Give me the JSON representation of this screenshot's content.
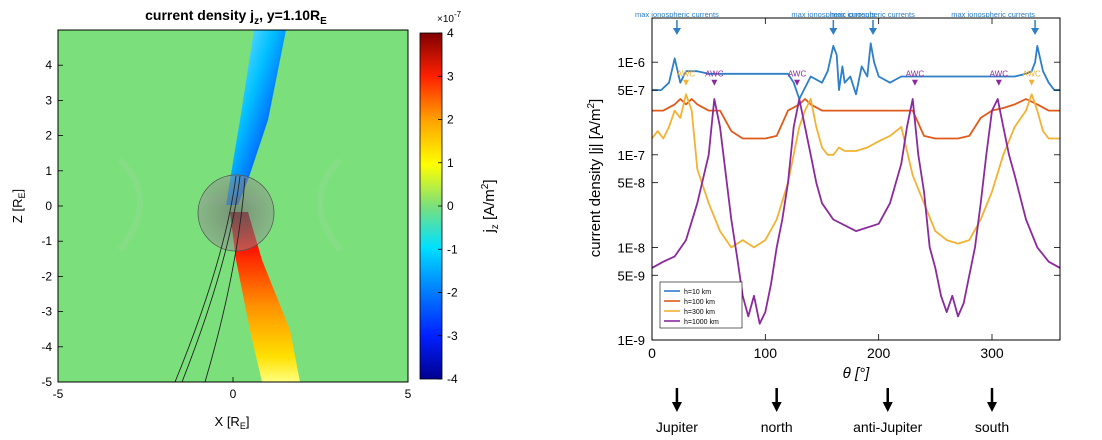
{
  "chart_data": [
    {
      "type": "heatmap",
      "title": "current density j",
      "title_subscript": "z",
      "title_rest": ", y=1.10R",
      "title_rest_subscript": "E",
      "xlabel": "X [R",
      "xlabel_subscript": "E",
      "xlabel_end": "]",
      "ylabel": "Z [R",
      "ylabel_subscript": "E",
      "ylabel_end": "]",
      "xlim": [
        -5,
        5
      ],
      "ylim": [
        -5,
        5
      ],
      "x_ticks": [
        "-5",
        "0",
        "5"
      ],
      "y_ticks": [
        "4",
        "3",
        "2",
        "1",
        "0",
        "-1",
        "-2",
        "-3",
        "-4",
        "-5"
      ],
      "colorbar": {
        "label": "j",
        "label_subscript": "z",
        "label_rest": " [A/m",
        "label_superscript": "2",
        "label_end": "]",
        "range": [
          -4,
          4
        ],
        "exponent_label": "×10",
        "exponent_value": "-7",
        "ticks": [
          "4",
          "3",
          "2",
          "1",
          "0",
          "-1",
          "-2",
          "-3",
          "-4"
        ]
      },
      "background_color": "#7be07b",
      "structure": {
        "positive_lobe": {
          "value": 4,
          "x": [
            0.1,
            1.4
          ],
          "z": [
            -0.3,
            -5
          ]
        },
        "negative_lobe": {
          "value": -4,
          "x": [
            1.5,
            0.1
          ],
          "z": [
            4.8,
            0.5
          ]
        },
        "body_radius": 1.0
      }
    },
    {
      "type": "line",
      "xlabel": "θ [°]",
      "ylabel": "current density |j| [A/m",
      "ylabel_superscript": "2",
      "ylabel_end": "]",
      "xlim": [
        0,
        360
      ],
      "ylim": [
        1e-09,
        3e-06
      ],
      "y_scale": "log",
      "x_ticks": [
        0,
        100,
        200,
        300
      ],
      "y_ticks": [
        {
          "value": 1e-06,
          "label": "1E-6"
        },
        {
          "value": 5e-07,
          "label": "5E-7"
        },
        {
          "value": 1e-07,
          "label": "1E-7"
        },
        {
          "value": 5e-08,
          "label": "5E-8"
        },
        {
          "value": 1e-08,
          "label": "1E-8"
        },
        {
          "value": 5e-09,
          "label": "5E-9"
        },
        {
          "value": 1e-09,
          "label": "1E-9"
        }
      ],
      "grid": false,
      "legend_position": "bottom-left",
      "series": [
        {
          "name": "h=10 km",
          "color": "#2d7fc8",
          "x": [
            0,
            8,
            15,
            20,
            25,
            30,
            40,
            50,
            60,
            80,
            100,
            120,
            125,
            130,
            140,
            150,
            155,
            160,
            163,
            165,
            168,
            170,
            175,
            180,
            185,
            190,
            193,
            196,
            200,
            210,
            215,
            220,
            240,
            260,
            280,
            300,
            320,
            330,
            335,
            338,
            340,
            345,
            350,
            355,
            360
          ],
          "y": [
            5e-07,
            5e-07,
            6e-07,
            1.1e-06,
            6e-07,
            8e-07,
            8e-07,
            7.5e-07,
            7.5e-07,
            7.5e-07,
            7.5e-07,
            7.5e-07,
            6e-07,
            4e-07,
            7e-07,
            6e-07,
            8e-07,
            1.5e-06,
            1.2e-06,
            5e-07,
            9e-07,
            6e-07,
            7e-07,
            4.5e-07,
            9e-07,
            7e-07,
            1.6e-06,
            1e-06,
            7e-07,
            6e-07,
            6.5e-07,
            7e-07,
            7e-07,
            7e-07,
            7e-07,
            7e-07,
            7e-07,
            7.5e-07,
            8e-07,
            1e-06,
            1.5e-06,
            8e-07,
            6e-07,
            5e-07,
            5e-07
          ]
        },
        {
          "name": "h=100 km",
          "color": "#e05a1c",
          "x": [
            0,
            10,
            20,
            25,
            30,
            35,
            40,
            50,
            60,
            70,
            80,
            90,
            100,
            110,
            120,
            130,
            135,
            140,
            150,
            160,
            170,
            180,
            190,
            200,
            210,
            220,
            230,
            240,
            250,
            260,
            270,
            280,
            290,
            300,
            310,
            320,
            330,
            340,
            350,
            360
          ],
          "y": [
            3e-07,
            3e-07,
            3.5e-07,
            4e-07,
            3.5e-07,
            4e-07,
            3.5e-07,
            3e-07,
            3e-07,
            1.8e-07,
            1.5e-07,
            1.5e-07,
            1.5e-07,
            1.6e-07,
            3e-07,
            3.5e-07,
            4e-07,
            3.5e-07,
            3e-07,
            3e-07,
            3e-07,
            3e-07,
            3e-07,
            3e-07,
            3e-07,
            3e-07,
            3e-07,
            1.6e-07,
            1.5e-07,
            1.5e-07,
            1.5e-07,
            1.6e-07,
            2.5e-07,
            3e-07,
            3.2e-07,
            3.5e-07,
            4e-07,
            3.5e-07,
            3e-07,
            3e-07
          ]
        },
        {
          "name": "h=300 km",
          "color": "#f2b233",
          "x": [
            0,
            5,
            10,
            15,
            20,
            25,
            30,
            35,
            40,
            50,
            60,
            70,
            80,
            90,
            100,
            110,
            120,
            130,
            135,
            140,
            145,
            150,
            155,
            160,
            165,
            170,
            180,
            190,
            200,
            210,
            220,
            230,
            240,
            250,
            260,
            270,
            280,
            290,
            300,
            310,
            320,
            330,
            335,
            340,
            345,
            350,
            360
          ],
          "y": [
            1.5e-07,
            1.8e-07,
            1.5e-07,
            2e-07,
            3e-07,
            2.5e-07,
            4.5e-07,
            3e-07,
            7e-08,
            3e-08,
            1.5e-08,
            1e-08,
            1.2e-08,
            1e-08,
            1.2e-08,
            2e-08,
            5e-08,
            2e-07,
            3e-07,
            4e-07,
            2e-07,
            1.2e-07,
            1e-07,
            1e-07,
            1.2e-07,
            1.1e-07,
            1.1e-07,
            1.2e-07,
            1.4e-07,
            1.6e-07,
            2e-07,
            6e-08,
            3e-08,
            1.5e-08,
            1.2e-08,
            1.1e-08,
            1.2e-08,
            2e-08,
            4e-08,
            1e-07,
            2e-07,
            3e-07,
            4.5e-07,
            3e-07,
            1.8e-07,
            1.5e-07,
            1.5e-07
          ]
        },
        {
          "name": "h=1000 km",
          "color": "#8b2a9c",
          "x": [
            0,
            10,
            20,
            30,
            40,
            50,
            55,
            60,
            70,
            75,
            80,
            85,
            90,
            95,
            100,
            105,
            110,
            115,
            120,
            125,
            130,
            135,
            140,
            145,
            150,
            160,
            180,
            200,
            210,
            220,
            225,
            230,
            235,
            240,
            245,
            250,
            255,
            260,
            265,
            270,
            275,
            280,
            285,
            290,
            295,
            300,
            305,
            310,
            315,
            320,
            330,
            340,
            350,
            360
          ],
          "y": [
            6e-09,
            7e-09,
            8e-09,
            1.2e-08,
            3e-08,
            1e-07,
            4e-07,
            2e-07,
            2e-08,
            8e-09,
            3e-09,
            1.8e-09,
            3e-09,
            1.5e-09,
            2e-09,
            4e-09,
            1e-08,
            2e-08,
            5e-08,
            2e-07,
            4e-07,
            2e-07,
            1e-07,
            5e-08,
            3e-08,
            2e-08,
            1.5e-08,
            1.8e-08,
            3e-08,
            8e-08,
            2e-07,
            4e-07,
            1e-07,
            4e-08,
            1e-08,
            6e-09,
            3e-09,
            2e-09,
            3e-09,
            1.8e-09,
            2.5e-09,
            5e-09,
            1e-08,
            3e-08,
            1e-07,
            3e-07,
            4e-07,
            2e-07,
            1e-07,
            6e-08,
            2e-08,
            1e-08,
            7e-09,
            6e-09
          ]
        }
      ],
      "annotations": [
        {
          "text": "max ionospheric currents",
          "x": 22,
          "color": "#2d7fc8"
        },
        {
          "text": "max ionospheric currents",
          "x": 160,
          "color": "#2d7fc8"
        },
        {
          "text": "max ionospheric currents",
          "x": 195,
          "color": "#2d7fc8"
        },
        {
          "text": "max ionospheric currents",
          "x": 338,
          "color": "#2d7fc8"
        },
        {
          "text": "AWC",
          "x": 30,
          "y": 6e-07,
          "color": "#f2b233"
        },
        {
          "text": "AWC",
          "x": 55,
          "y": 6e-07,
          "color": "#8b2a9c"
        },
        {
          "text": "AWC",
          "x": 128,
          "y": 6e-07,
          "color": "#8b2a9c"
        },
        {
          "text": "AWC",
          "x": 232,
          "y": 6e-07,
          "color": "#8b2a9c"
        },
        {
          "text": "AWC",
          "x": 306,
          "y": 6e-07,
          "color": "#8b2a9c"
        },
        {
          "text": "AWC",
          "x": 335,
          "y": 6e-07,
          "color": "#f2b233"
        }
      ],
      "direction_labels": [
        {
          "text": "Jupiter",
          "x": 22
        },
        {
          "text": "north",
          "x": 110
        },
        {
          "text": "anti-Jupiter",
          "x": 208
        },
        {
          "text": "south",
          "x": 300
        }
      ]
    }
  ]
}
